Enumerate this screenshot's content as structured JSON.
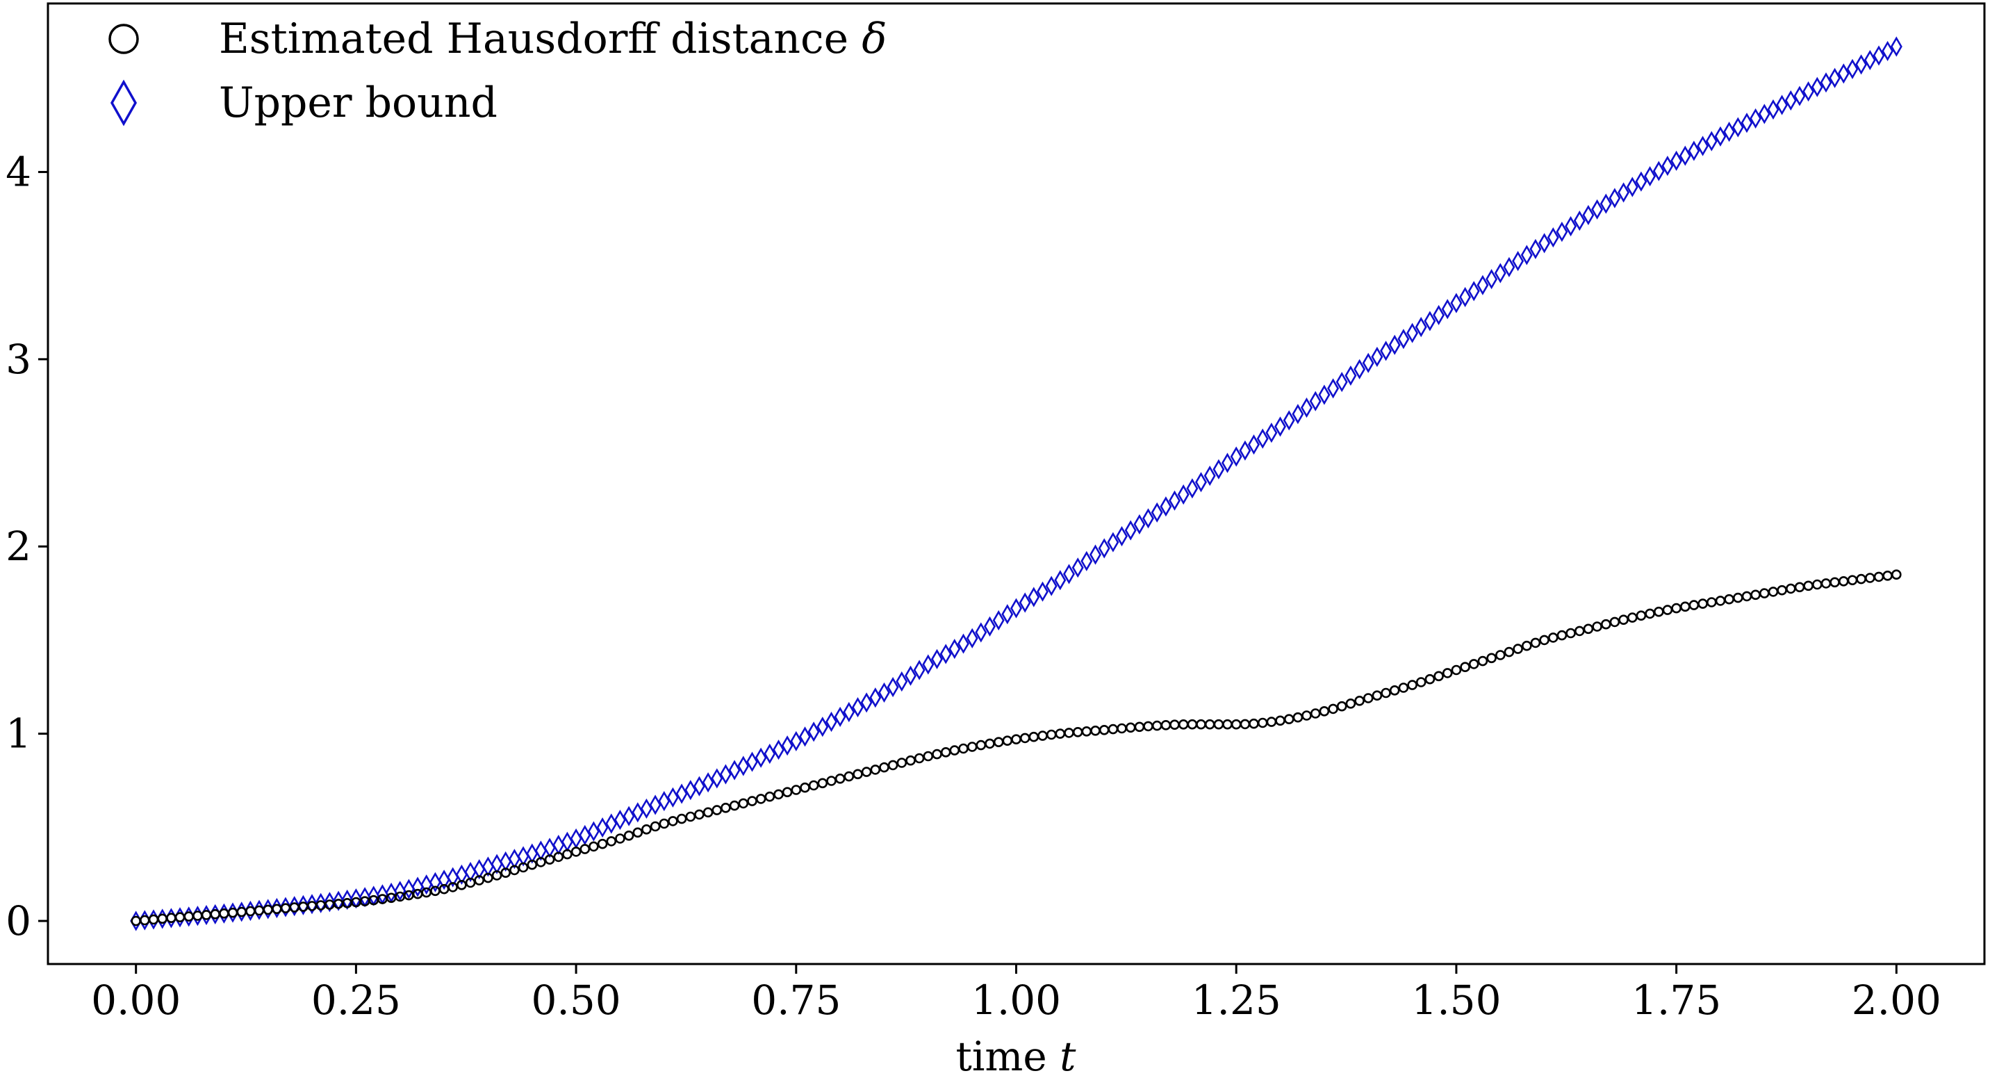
{
  "chart_data": {
    "type": "scatter",
    "xlabel": "time ",
    "xlabel_var": "t",
    "ylabel": "",
    "xlim": [
      -0.1,
      2.1
    ],
    "ylim": [
      -0.23,
      4.9
    ],
    "xticks": [
      0.0,
      0.25,
      0.5,
      0.75,
      1.0,
      1.25,
      1.5,
      1.75,
      2.0
    ],
    "xtick_labels": [
      "0.00",
      "0.25",
      "0.50",
      "0.75",
      "1.00",
      "1.25",
      "1.50",
      "1.75",
      "2.00"
    ],
    "yticks": [
      0,
      1,
      2,
      3,
      4
    ],
    "ytick_labels": [
      "0",
      "1",
      "2",
      "3",
      "4"
    ],
    "grid": false,
    "legend_position": "top-left",
    "x_start": 0.0,
    "x_end": 2.0,
    "x_step": 0.01,
    "series": [
      {
        "name": "Estimated Hausdorff distance ",
        "name_var": "δ",
        "marker": "circle",
        "color": "#000000",
        "curve_points": [
          [
            0.0,
            0.0
          ],
          [
            0.1,
            0.04
          ],
          [
            0.2,
            0.08
          ],
          [
            0.25,
            0.1
          ],
          [
            0.3,
            0.13
          ],
          [
            0.35,
            0.17
          ],
          [
            0.4,
            0.23
          ],
          [
            0.45,
            0.3
          ],
          [
            0.5,
            0.37
          ],
          [
            0.55,
            0.44
          ],
          [
            0.6,
            0.52
          ],
          [
            0.65,
            0.58
          ],
          [
            0.7,
            0.64
          ],
          [
            0.75,
            0.7
          ],
          [
            0.8,
            0.76
          ],
          [
            0.85,
            0.82
          ],
          [
            0.9,
            0.88
          ],
          [
            0.95,
            0.93
          ],
          [
            1.0,
            0.97
          ],
          [
            1.05,
            1.0
          ],
          [
            1.1,
            1.02
          ],
          [
            1.15,
            1.04
          ],
          [
            1.2,
            1.05
          ],
          [
            1.25,
            1.05
          ],
          [
            1.3,
            1.07
          ],
          [
            1.35,
            1.12
          ],
          [
            1.4,
            1.19
          ],
          [
            1.45,
            1.26
          ],
          [
            1.5,
            1.34
          ],
          [
            1.55,
            1.42
          ],
          [
            1.6,
            1.5
          ],
          [
            1.65,
            1.56
          ],
          [
            1.7,
            1.62
          ],
          [
            1.75,
            1.67
          ],
          [
            1.8,
            1.71
          ],
          [
            1.85,
            1.75
          ],
          [
            1.9,
            1.79
          ],
          [
            1.95,
            1.82
          ],
          [
            2.0,
            1.85
          ]
        ]
      },
      {
        "name": "Upper bound",
        "marker": "diamond",
        "color": "#1010cc",
        "curve_points": [
          [
            0.0,
            0.0
          ],
          [
            0.1,
            0.04
          ],
          [
            0.2,
            0.09
          ],
          [
            0.25,
            0.12
          ],
          [
            0.3,
            0.16
          ],
          [
            0.35,
            0.22
          ],
          [
            0.4,
            0.29
          ],
          [
            0.45,
            0.36
          ],
          [
            0.5,
            0.44
          ],
          [
            0.55,
            0.54
          ],
          [
            0.6,
            0.64
          ],
          [
            0.65,
            0.74
          ],
          [
            0.7,
            0.85
          ],
          [
            0.75,
            0.96
          ],
          [
            0.8,
            1.09
          ],
          [
            0.85,
            1.22
          ],
          [
            0.9,
            1.37
          ],
          [
            0.95,
            1.51
          ],
          [
            1.0,
            1.67
          ],
          [
            1.05,
            1.82
          ],
          [
            1.1,
            1.99
          ],
          [
            1.15,
            2.15
          ],
          [
            1.2,
            2.31
          ],
          [
            1.25,
            2.48
          ],
          [
            1.3,
            2.64
          ],
          [
            1.35,
            2.81
          ],
          [
            1.4,
            2.98
          ],
          [
            1.45,
            3.14
          ],
          [
            1.5,
            3.3
          ],
          [
            1.55,
            3.46
          ],
          [
            1.6,
            3.62
          ],
          [
            1.65,
            3.77
          ],
          [
            1.7,
            3.92
          ],
          [
            1.75,
            4.06
          ],
          [
            1.8,
            4.19
          ],
          [
            1.85,
            4.31
          ],
          [
            1.9,
            4.43
          ],
          [
            1.95,
            4.55
          ],
          [
            2.0,
            4.67
          ]
        ]
      }
    ]
  }
}
